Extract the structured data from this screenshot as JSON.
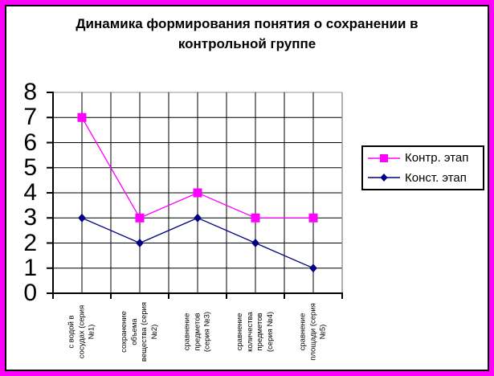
{
  "frame": {
    "outer_border_color": "#FF00FF",
    "inner_border_color": "#000000",
    "background": "#FFFFFF"
  },
  "chart_data": {
    "type": "line",
    "title": "Динамика формирования понятия о сохранении в контрольной группе",
    "title_lines": [
      "Динамика формирования  понятия  о сохранении в",
      "контрольной группе"
    ],
    "xlabel": "",
    "ylabel": "",
    "categories": [
      "с водой в сосудах (серия №1)",
      "сохранение объема вещества (серия №2)",
      "сравнение предметов (серия №3)",
      "сравнение количества предметов (серия №4)",
      "сравнение площади (серия №5)"
    ],
    "category_label_lines": [
      [
        "с водой в",
        "сосудах (серия",
        "№1)"
      ],
      [
        "сохранение",
        "объема",
        "вещества (серия",
        "№2)"
      ],
      [
        "сравнение",
        "предметов",
        "(серия №3)"
      ],
      [
        "сравнение",
        "количества",
        "предметов",
        "(серия №4)"
      ],
      [
        "сравнение",
        "площади (серия",
        "№5)"
      ]
    ],
    "series": [
      {
        "name": "Контр. этап",
        "values": [
          7,
          3,
          4,
          3,
          3
        ],
        "color": "#FF00FF",
        "marker": "square"
      },
      {
        "name": "Конст. этап",
        "values": [
          3,
          2,
          3,
          2,
          1
        ],
        "color": "#000080",
        "marker": "diamond"
      }
    ],
    "ylim": [
      0,
      8
    ],
    "yticks": [
      0,
      1,
      2,
      3,
      4,
      5,
      6,
      7,
      8
    ],
    "grid": true,
    "gridline_color": "#000000",
    "plot_border_color": "#969696",
    "axis_color": "#000000",
    "legend_position": "right"
  }
}
